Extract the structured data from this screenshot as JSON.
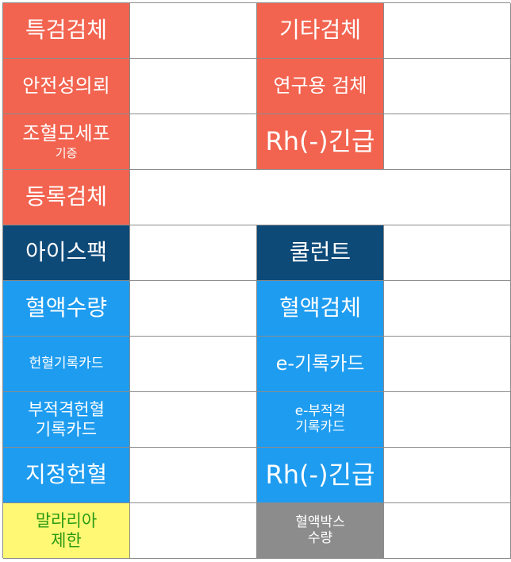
{
  "rows": [
    {
      "left": "특검검체",
      "right": "기타검체"
    },
    {
      "left": "안전성의뢰",
      "right": "연구용 검체"
    },
    {
      "left_line1": "조혈모세포",
      "left_line2": "기증",
      "right": "Rh(-)긴급"
    },
    {
      "left": "등록검체"
    },
    {
      "left": "아이스팩",
      "right": "쿨런트"
    },
    {
      "left": "혈액수량",
      "right": "혈액검체"
    },
    {
      "left": "헌혈기록카드",
      "right": "e-기록카드"
    },
    {
      "left_line1": "부적격헌혈",
      "left_line2": "기록카드",
      "right_line1": "e-부적격",
      "right_line2": "기록카드"
    },
    {
      "left": "지정헌혈",
      "right": "Rh(-)긴급"
    },
    {
      "left_line1": "말라리아",
      "left_line2": "제한",
      "right_line1": "혈액박스",
      "right_line2": "수량"
    }
  ],
  "colors": {
    "red": "#f26450",
    "navy": "#0d4a78",
    "blue": "#1e9cf0",
    "yellow": "#fff874",
    "yellow_text": "#2a9a13",
    "gray": "#8c8c8c",
    "border": "#8c8c8c"
  }
}
